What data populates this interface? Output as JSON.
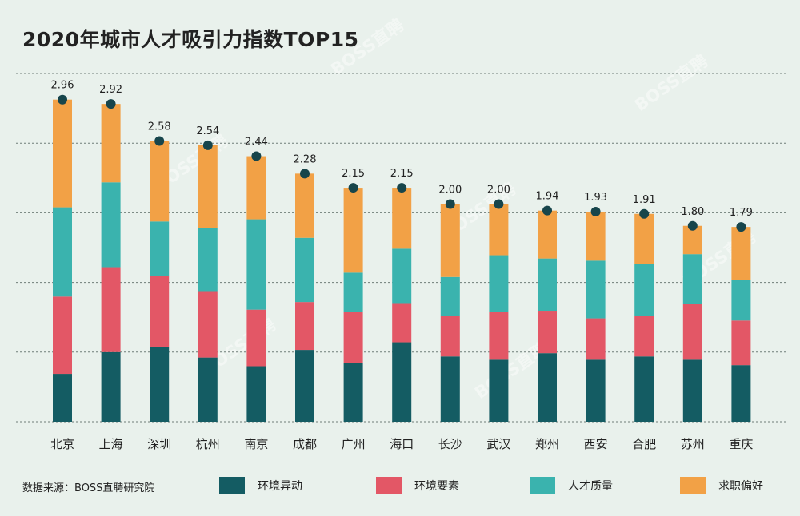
{
  "title": "2020年城市人才吸引力指数TOP15",
  "source": "数据来源：BOSS直聘研究院",
  "watermark": "BOSS直聘",
  "colors": {
    "环境异动": "#145c63",
    "环境要素": "#e35766",
    "人才质量": "#3ab3ae",
    "求职偏好": "#f2a146",
    "dot": "#17454b",
    "grid": "#6f7d78"
  },
  "chart_data": {
    "type": "bar",
    "stacked": true,
    "categories": [
      "北京",
      "上海",
      "深圳",
      "杭州",
      "南京",
      "成都",
      "广州",
      "海口",
      "长沙",
      "武汉",
      "郑州",
      "西安",
      "合肥",
      "苏州",
      "重庆"
    ],
    "totals": [
      2.96,
      2.92,
      2.58,
      2.54,
      2.44,
      2.28,
      2.15,
      2.15,
      2.0,
      2.0,
      1.94,
      1.93,
      1.91,
      1.8,
      1.79
    ],
    "total_labels": [
      "2.96",
      "2.92",
      "2.58",
      "2.54",
      "2.44",
      "2.28",
      "2.15",
      "2.15",
      "2.00",
      "2.00",
      "1.94",
      "1.93",
      "1.91",
      "1.80",
      "1.79"
    ],
    "series": [
      {
        "name": "环境异动",
        "values": [
          0.44,
          0.64,
          0.69,
          0.59,
          0.51,
          0.66,
          0.54,
          0.73,
          0.6,
          0.57,
          0.63,
          0.57,
          0.6,
          0.57,
          0.52
        ]
      },
      {
        "name": "环境要素",
        "values": [
          0.71,
          0.78,
          0.65,
          0.61,
          0.52,
          0.44,
          0.47,
          0.36,
          0.37,
          0.44,
          0.39,
          0.38,
          0.37,
          0.51,
          0.41
        ]
      },
      {
        "name": "人才质量",
        "values": [
          0.82,
          0.78,
          0.5,
          0.58,
          0.83,
          0.59,
          0.36,
          0.5,
          0.36,
          0.52,
          0.48,
          0.53,
          0.48,
          0.46,
          0.37
        ]
      },
      {
        "name": "求职偏好",
        "values": [
          0.99,
          0.72,
          0.74,
          0.76,
          0.58,
          0.59,
          0.78,
          0.56,
          0.67,
          0.47,
          0.44,
          0.45,
          0.46,
          0.26,
          0.49
        ]
      }
    ],
    "ylim": [
      0,
      3.2
    ],
    "grid": true,
    "legend_position": "bottom"
  }
}
